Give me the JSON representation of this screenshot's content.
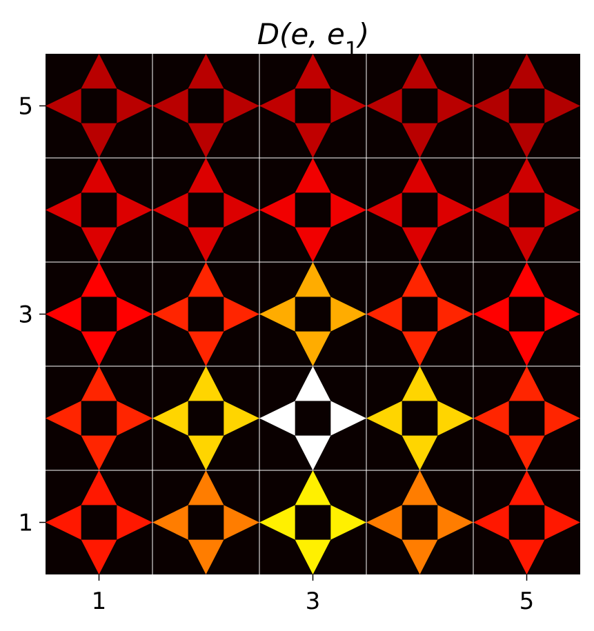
{
  "chart_data": {
    "type": "heatmap",
    "title_parts": {
      "base": "D(e, e",
      "sub": "1",
      "close": ")"
    },
    "xlabel": "",
    "ylabel": "",
    "xlim": [
      0.5,
      5.5
    ],
    "ylim": [
      0.5,
      5.5
    ],
    "x_ticks": [
      "1",
      "3",
      "5"
    ],
    "y_ticks": [
      "1",
      "3",
      "5"
    ],
    "grid": true,
    "colormap": "hot",
    "background_color": "#0a0000",
    "grid_color": "#ffffff",
    "cells": [
      {
        "x": 1,
        "y": 5,
        "top": 0.25,
        "right": 0.25,
        "bottom": 0.25,
        "left": 0.25
      },
      {
        "x": 2,
        "y": 5,
        "top": 0.25,
        "right": 0.25,
        "bottom": 0.25,
        "left": 0.25
      },
      {
        "x": 3,
        "y": 5,
        "top": 0.26,
        "right": 0.26,
        "bottom": 0.26,
        "left": 0.26
      },
      {
        "x": 4,
        "y": 5,
        "top": 0.25,
        "right": 0.25,
        "bottom": 0.25,
        "left": 0.25
      },
      {
        "x": 5,
        "y": 5,
        "top": 0.24,
        "right": 0.24,
        "bottom": 0.24,
        "left": 0.24
      },
      {
        "x": 1,
        "y": 4,
        "top": 0.3,
        "right": 0.3,
        "bottom": 0.3,
        "left": 0.3
      },
      {
        "x": 2,
        "y": 4,
        "top": 0.3,
        "right": 0.3,
        "bottom": 0.3,
        "left": 0.3
      },
      {
        "x": 3,
        "y": 4,
        "top": 0.33,
        "right": 0.33,
        "bottom": 0.33,
        "left": 0.33
      },
      {
        "x": 4,
        "y": 4,
        "top": 0.3,
        "right": 0.3,
        "bottom": 0.3,
        "left": 0.3
      },
      {
        "x": 5,
        "y": 4,
        "top": 0.28,
        "right": 0.28,
        "bottom": 0.28,
        "left": 0.28
      },
      {
        "x": 1,
        "y": 3,
        "top": 0.36,
        "right": 0.36,
        "bottom": 0.36,
        "left": 0.36
      },
      {
        "x": 2,
        "y": 3,
        "top": 0.42,
        "right": 0.42,
        "bottom": 0.42,
        "left": 0.42
      },
      {
        "x": 3,
        "y": 3,
        "top": 0.62,
        "right": 0.62,
        "bottom": 0.62,
        "left": 0.62
      },
      {
        "x": 4,
        "y": 3,
        "top": 0.42,
        "right": 0.42,
        "bottom": 0.42,
        "left": 0.42
      },
      {
        "x": 5,
        "y": 3,
        "top": 0.36,
        "right": 0.36,
        "bottom": 0.36,
        "left": 0.36
      },
      {
        "x": 1,
        "y": 2,
        "top": 0.42,
        "right": 0.42,
        "bottom": 0.42,
        "left": 0.42
      },
      {
        "x": 2,
        "y": 2,
        "top": 0.68,
        "right": 0.68,
        "bottom": 0.68,
        "left": 0.68
      },
      {
        "x": 3,
        "y": 2,
        "top": 1.0,
        "right": 1.0,
        "bottom": 1.0,
        "left": 1.0
      },
      {
        "x": 4,
        "y": 2,
        "top": 0.68,
        "right": 0.68,
        "bottom": 0.68,
        "left": 0.68
      },
      {
        "x": 5,
        "y": 2,
        "top": 0.42,
        "right": 0.42,
        "bottom": 0.42,
        "left": 0.42
      },
      {
        "x": 1,
        "y": 1,
        "top": 0.4,
        "right": 0.4,
        "bottom": 0.4,
        "left": 0.4
      },
      {
        "x": 2,
        "y": 1,
        "top": 0.55,
        "right": 0.55,
        "bottom": 0.55,
        "left": 0.55
      },
      {
        "x": 3,
        "y": 1,
        "top": 0.72,
        "right": 0.72,
        "bottom": 0.72,
        "left": 0.72
      },
      {
        "x": 4,
        "y": 1,
        "top": 0.55,
        "right": 0.55,
        "bottom": 0.55,
        "left": 0.55
      },
      {
        "x": 5,
        "y": 1,
        "top": 0.4,
        "right": 0.4,
        "bottom": 0.4,
        "left": 0.4
      }
    ]
  }
}
